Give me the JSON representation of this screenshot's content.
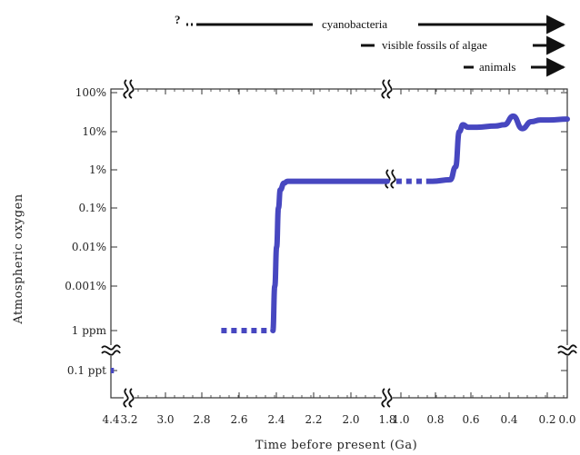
{
  "chart_data": {
    "type": "line",
    "title": "",
    "xlabel": "Time before present (Ga)",
    "ylabel": "Atmospheric oxygen",
    "x_ticks": [
      "4.4",
      "3.2",
      "3.0",
      "2.8",
      "2.6",
      "2.4",
      "2.2",
      "2.0",
      "1.8",
      "1.0",
      "0.8",
      "0.6",
      "0.4",
      "0.2",
      "0.0"
    ],
    "y_ticks": [
      "100%",
      "10%",
      "1%",
      "0.1%",
      "0.01%",
      "0.001%",
      "1 ppm",
      "0.1 ppt"
    ],
    "x_axis_breaks": [
      3.2,
      1.0
    ],
    "y_axis_break_between": [
      "1 ppm",
      "0.1 ppt"
    ],
    "y_scale": "log",
    "grid": false,
    "series": [
      {
        "style": "dotted",
        "x": [
          4.4,
          4.2
        ],
        "y": [
          "0.1 ppt",
          "0.1 ppt"
        ]
      },
      {
        "style": "dotted",
        "x": [
          2.7,
          2.6,
          2.45
        ],
        "y": [
          "1 ppm",
          "1 ppm",
          "1 ppm"
        ]
      },
      {
        "style": "solid",
        "x": [
          2.42,
          2.41,
          2.4,
          2.39,
          2.38,
          2.36,
          2.34,
          2.3,
          2.2,
          2.0,
          1.8
        ],
        "y": [
          "1 ppm",
          "0.001%",
          "0.01%",
          "0.1%",
          "0.3%",
          "0.45%",
          "0.5%",
          "0.5%",
          "0.5%",
          "0.5%",
          "0.5%"
        ]
      },
      {
        "style": "dotted",
        "x": [
          0.95,
          0.85,
          0.75
        ],
        "y": [
          "0.5%",
          "0.5%",
          "0.5%"
        ]
      },
      {
        "style": "solid",
        "x": [
          0.75,
          0.65,
          0.62,
          0.6,
          0.58,
          0.55,
          0.5,
          0.4,
          0.35,
          0.3,
          0.25,
          0.2,
          0.15,
          0.1,
          0.0
        ],
        "y": [
          "0.5%",
          "0.55%",
          "1.2%",
          "10%",
          "15%",
          "13%",
          "13%",
          "14%",
          "15%",
          "25%",
          "12%",
          "18%",
          "20%",
          "20%",
          "21%"
        ]
      }
    ],
    "color": "#4747c0"
  },
  "annotations": {
    "question_mark": "?",
    "arrows": [
      {
        "label": "cyanobacteria"
      },
      {
        "label": "visible fossils of algae"
      },
      {
        "label": "animals"
      }
    ]
  }
}
